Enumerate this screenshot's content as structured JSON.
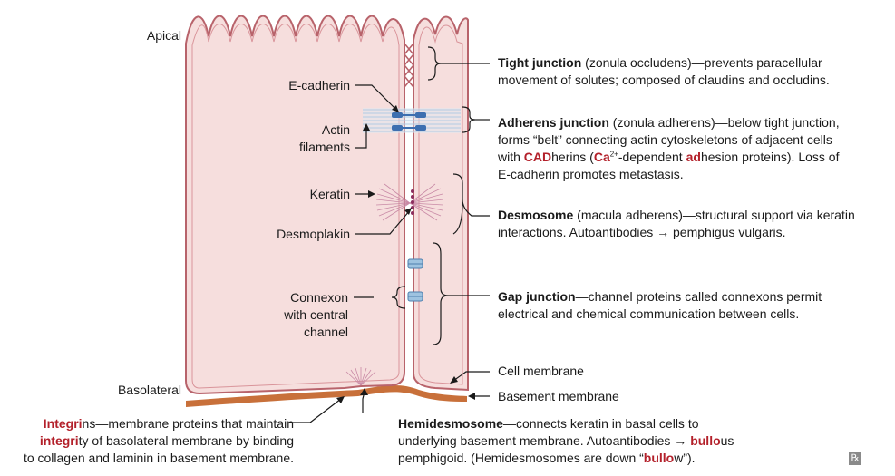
{
  "left_labels": {
    "apical": "Apical",
    "e_cadherin": "E-cadherin",
    "actin_1": "Actin",
    "actin_2": "filaments",
    "keratin": "Keratin",
    "desmoplakin": "Desmoplakin",
    "connexon_1": "Connexon",
    "connexon_2": "with central",
    "connexon_3": "channel",
    "basolateral": "Basolateral"
  },
  "tight_junction": {
    "term": "Tight junction",
    "line1": " (zonula occludens)—prevents paracellular",
    "line2": "movement of solutes; composed of claudins and occludins."
  },
  "adherens_junction": {
    "term": "Adherens junction",
    "line1": " (zonula adherens)—below tight junction,",
    "line2": "forms “belt” connecting actin cytoskeletons of adjacent cells",
    "line3a": "with ",
    "cad": "CAD",
    "line3b": "herins (",
    "ca": "Ca",
    "ca_sup": "2+",
    "line3c": "-dependent ",
    "ad": "ad",
    "line3d": "hesion proteins). Loss of",
    "line4": "E-cadherin promotes metastasis."
  },
  "desmosome": {
    "term": "Desmosome",
    "line1": " (macula adherens)—structural support via keratin",
    "line2": "interactions. Autoantibodies → pemphigus vulgaris."
  },
  "gap_junction": {
    "term": "Gap junction",
    "line1": "—channel proteins called connexons permit",
    "line2": "electrical and chemical communication between cells."
  },
  "membranes": {
    "cell": "Cell membrane",
    "basement": "Basement membrane"
  },
  "integrins": {
    "hl1": "Integri",
    "line1": "ns—membrane proteins that maintain",
    "hl2": "integri",
    "line2": "ty of basolateral membrane by binding",
    "line3": "to collagen and laminin in basement membrane."
  },
  "hemidesmosome": {
    "term": "Hemidesmosome",
    "line1": "—connects keratin in basal cells to",
    "line2a": "underlying basement membrane. Autoantibodies → ",
    "bullo1": "bullo",
    "line2b": "us",
    "line3a": "pemphigoid. (Hemidesmosomes are down “",
    "bullo2": "bullo",
    "line3b": "w”)."
  },
  "badge": "℞",
  "colors": {
    "cell_fill": "#f6dedd",
    "membrane": "#b8636b",
    "basement": "#c8703a",
    "cadherin": "#3d6fb0",
    "gap": "#9ec3e0",
    "desmosome": "#8c2d5e",
    "line": "#1a1a1a"
  }
}
